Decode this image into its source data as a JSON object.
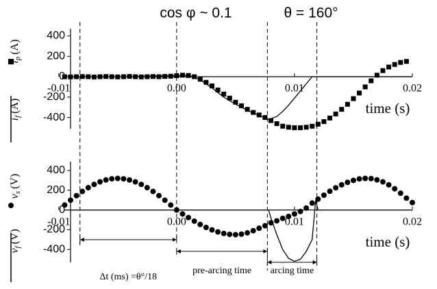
{
  "chart_data": [
    {
      "type": "line",
      "annotations": [
        "cos φ ~ 0.1",
        "θ = 160°"
      ],
      "markers": [
        -0.0082,
        0,
        0.0077,
        0.0119
      ],
      "xlabel": "time (s)",
      "xlim": [
        -0.009,
        0.02
      ],
      "xticks": [
        -0.01,
        {
          "value": 0,
          "label": "0.00"
        },
        0.01,
        0.02
      ],
      "ylim": [
        -510,
        470
      ],
      "yticks": [
        -400,
        -200,
        0,
        200,
        400
      ],
      "series": [
        {
          "label": {
            "symbol": "i",
            "sub": "p",
            "unit": "(A)"
          },
          "marker": "square",
          "color": "#000000",
          "x": [
            -0.0095,
            -0.009,
            -0.0085,
            -0.008,
            -0.0075,
            -0.007,
            -0.0065,
            -0.006,
            -0.0055,
            -0.005,
            -0.0045,
            -0.004,
            -0.0035,
            -0.003,
            -0.0025,
            -0.002,
            -0.0015,
            -0.001,
            -0.0005,
            0,
            0.0005,
            0.001,
            0.0015,
            0.002,
            0.0025,
            0.003,
            0.0035,
            0.004,
            0.0045,
            0.005,
            0.0055,
            0.006,
            0.0065,
            0.007,
            0.0075,
            0.008,
            0.0085,
            0.009,
            0.0095,
            0.01,
            0.0105,
            0.011,
            0.0115,
            0.012,
            0.0125,
            0.013,
            0.0135,
            0.014,
            0.0145,
            0.015,
            0.0155,
            0.016,
            0.0165,
            0.017,
            0.0175,
            0.018,
            0.0185,
            0.019,
            0.0195
          ],
          "values": [
            0,
            -2,
            0,
            2,
            0,
            -3,
            0,
            2,
            0,
            -2,
            0,
            3,
            0,
            -2,
            0,
            2,
            0,
            3,
            5,
            10,
            15,
            12,
            0,
            -25,
            -55,
            -90,
            -130,
            -170,
            -210,
            -250,
            -285,
            -320,
            -350,
            -375,
            -400,
            -430,
            -460,
            -485,
            -495,
            -500,
            -500,
            -495,
            -485,
            -465,
            -440,
            -405,
            -365,
            -320,
            -270,
            -215,
            -160,
            -100,
            -40,
            15,
            60,
            95,
            120,
            140,
            150
          ]
        },
        {
          "label": {
            "symbol": "i",
            "sub": "f",
            "unit": "(A)"
          },
          "marker": "line",
          "color": "#000000",
          "x": [
            -0.0095,
            -0.005,
            0,
            0.001,
            0.002,
            0.003,
            0.004,
            0.005,
            0.006,
            0.007,
            0.0078,
            0.0085,
            0.009,
            0.0095,
            0.01,
            0.0105,
            0.011,
            0.0115,
            0.012,
            0.016,
            0.02
          ],
          "values": [
            0,
            0,
            10,
            15,
            -30,
            -110,
            -200,
            -270,
            -330,
            -380,
            -420,
            -390,
            -340,
            -280,
            -210,
            -140,
            -70,
            0,
            0,
            0,
            0
          ]
        }
      ]
    },
    {
      "type": "line",
      "annotations": [
        "Δt (ms) =θ°/18",
        "pre-arcing time",
        "arcing time"
      ],
      "xlabel": "time (s)",
      "xlim": [
        -0.009,
        0.02
      ],
      "xticks": [
        -0.01,
        {
          "value": 0,
          "label": "0.00"
        },
        0.01,
        0.02
      ],
      "ylim": [
        -530,
        490
      ],
      "yticks": [
        -400,
        -200,
        0,
        200,
        400
      ],
      "series": [
        {
          "label": {
            "symbol": "v",
            "sub": "s",
            "unit": "(V)"
          },
          "marker": "circle",
          "color": "#000000",
          "x": [
            -0.0095,
            -0.009,
            -0.0085,
            -0.008,
            -0.0075,
            -0.007,
            -0.0065,
            -0.006,
            -0.0055,
            -0.005,
            -0.0045,
            -0.004,
            -0.0035,
            -0.003,
            -0.0025,
            -0.002,
            -0.0015,
            -0.001,
            -0.0005,
            0,
            0.0005,
            0.001,
            0.0015,
            0.002,
            0.0025,
            0.003,
            0.0035,
            0.004,
            0.0045,
            0.005,
            0.0055,
            0.006,
            0.0065,
            0.007,
            0.0075,
            0.008,
            0.0085,
            0.009,
            0.0095,
            0.01,
            0.0105,
            0.011,
            0.0115,
            0.012,
            0.0125,
            0.013,
            0.0135,
            0.014,
            0.0145,
            0.015,
            0.0155,
            0.016,
            0.0165,
            0.017,
            0.0175,
            0.018,
            0.0185,
            0.019,
            0.0195,
            0.02
          ],
          "values": [
            50,
            99,
            145,
            188,
            226,
            259,
            285,
            304,
            316,
            320,
            316,
            304,
            285,
            259,
            226,
            188,
            145,
            99,
            50,
            0,
            -40,
            -77,
            -113,
            -147,
            -177,
            -202,
            -222,
            -238,
            -247,
            -250,
            -245,
            -232,
            -210,
            -185,
            -160,
            -130,
            -110,
            -85,
            -65,
            -40,
            -15,
            20,
            70,
            110,
            150,
            190,
            225,
            255,
            280,
            300,
            315,
            320,
            318,
            305,
            285,
            255,
            215,
            170,
            120,
            75
          ]
        },
        {
          "label": {
            "symbol": "v",
            "sub": "f",
            "unit": "(V)"
          },
          "marker": "line",
          "color": "#000000",
          "x": [
            -0.0095,
            0,
            0.0078,
            0.008,
            0.0085,
            0.009,
            0.0095,
            0.01,
            0.0105,
            0.011,
            0.0115,
            0.0118,
            0.012,
            0.02
          ],
          "values": [
            0,
            0,
            0,
            -80,
            -250,
            -400,
            -490,
            -520,
            -500,
            -420,
            -300,
            100,
            0,
            0
          ]
        }
      ]
    }
  ]
}
